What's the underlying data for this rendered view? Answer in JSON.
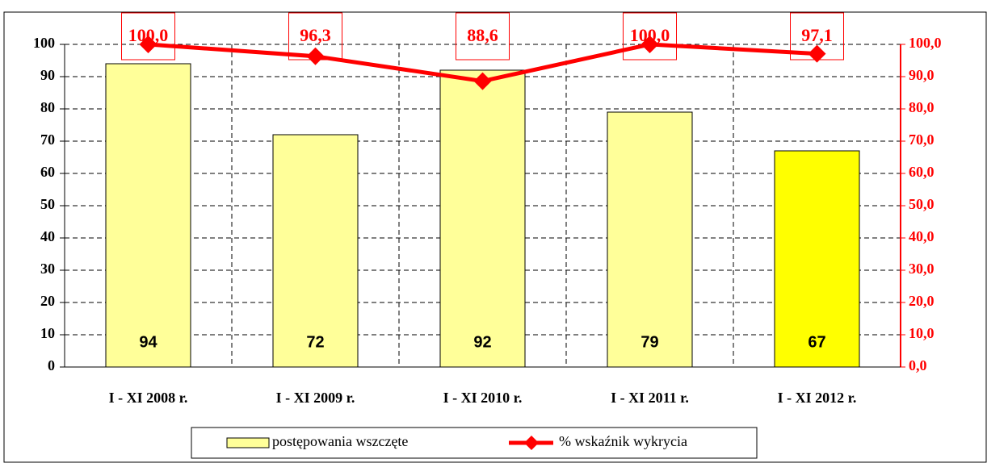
{
  "chart_data": {
    "type": "bar",
    "categories": [
      "I - XI 2008 r.",
      "I - XI 2009 r.",
      "I - XI 2010 r.",
      "I - XI 2011 r.",
      "I - XI 2012 r."
    ],
    "series": [
      {
        "name": "postępowania wszczęte",
        "type": "bar",
        "color": "#ffff99",
        "colors": [
          "#ffff99",
          "#ffff99",
          "#ffff99",
          "#ffff99",
          "#ffff00"
        ],
        "values": [
          94,
          72,
          92,
          79,
          67
        ]
      },
      {
        "name": "% wskaźnik wykrycia",
        "type": "line",
        "axis": "y2",
        "color": "#ff0000",
        "values": [
          100.0,
          96.3,
          88.6,
          100.0,
          97.1
        ],
        "value_labels": [
          "100,0",
          "96,3",
          "88,6",
          "100,0",
          "97,1"
        ]
      }
    ],
    "ylim": [
      0,
      100
    ],
    "yticks": [
      0,
      10,
      20,
      30,
      40,
      50,
      60,
      70,
      80,
      90,
      100
    ],
    "y2lim": [
      0,
      100
    ],
    "y2ticks": [
      {
        "value": 0,
        "label": "0,0"
      },
      {
        "value": 10,
        "label": "10,0"
      },
      {
        "value": 20,
        "label": "20,0"
      },
      {
        "value": 30,
        "label": "30,0"
      },
      {
        "value": 40,
        "label": "40,0"
      },
      {
        "value": 50,
        "label": "50,0"
      },
      {
        "value": 60,
        "label": "60,0"
      },
      {
        "value": 70,
        "label": "70,0"
      },
      {
        "value": 80,
        "label": "80,0"
      },
      {
        "value": 90,
        "label": "90,0"
      },
      {
        "value": 100,
        "label": "100,0"
      }
    ],
    "grid": true,
    "legend": "bottom"
  }
}
